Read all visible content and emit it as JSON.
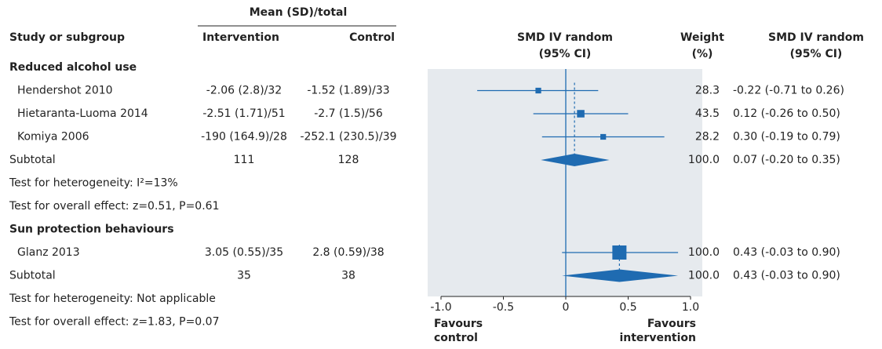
{
  "chart_data": {
    "type": "forest",
    "group_header": "Mean (SD)/total",
    "study_header": "Study or subgroup",
    "intervention_header": "Intervention",
    "control_header": "Control",
    "plot_header": [
      "SMD IV random",
      "(95% CI)"
    ],
    "weight_header": [
      "Weight",
      "(%)"
    ],
    "ci_header": [
      "SMD IV random",
      "(95% CI)"
    ],
    "xlim": [
      -1,
      1
    ],
    "xticks": [
      {
        "value": -1,
        "label": "-1.0"
      },
      {
        "value": -0.5,
        "label": "-0.5"
      },
      0,
      0.5,
      {
        "value": 1,
        "label": "1.0"
      }
    ],
    "favours_left": [
      "Favours",
      "control"
    ],
    "favours_right": [
      "Favours",
      "intervention"
    ],
    "color": "#1f6bb1",
    "subgroups": [
      {
        "name": "Reduced alcohol use",
        "studies": [
          {
            "name": "Hendershot 2010",
            "intervention": "-2.06 (2.8)/32",
            "control": "-1.52 (1.89)/33",
            "est": -0.22,
            "lo": -0.71,
            "hi": 0.26,
            "weight": 28.3,
            "ci_label": "-0.22 (-0.71 to 0.26)"
          },
          {
            "name": "Hietaranta-Luoma 2014",
            "intervention": "-2.51 (1.71)/51",
            "control": "-2.7 (1.5)/56",
            "est": 0.12,
            "lo": -0.26,
            "hi": 0.5,
            "weight": 43.5,
            "ci_label": "0.12 (-0.26 to 0.50)"
          },
          {
            "name": "Komiya 2006",
            "intervention": "-190 (164.9)/28",
            "control": "-252.1 (230.5)/39",
            "est": 0.3,
            "lo": -0.19,
            "hi": 0.79,
            "weight": 28.2,
            "ci_label": "0.30 (-0.19 to 0.79)"
          }
        ],
        "subtotal": {
          "name": "Subtotal",
          "intervention": 111,
          "control": 128,
          "est": 0.07,
          "lo": -0.2,
          "hi": 0.35,
          "weight": {
            "value": 100,
            "label": "100.0"
          },
          "ci_label": "0.07 (-0.20 to 0.35)"
        },
        "heterogeneity": "Test for heterogeneity: I²=13%",
        "overall": "Test for overall effect: z=0.51, P=0.61"
      },
      {
        "name": "Sun protection behaviours",
        "studies": [
          {
            "name": "Glanz 2013",
            "intervention": "3.05 (0.55)/35",
            "control": "2.8 (0.59)/38",
            "est": 0.43,
            "lo": -0.03,
            "hi": 0.9,
            "weight": {
              "value": 100,
              "label": "100.0"
            },
            "ci_label": "0.43 (-0.03 to 0.90)"
          }
        ],
        "subtotal": {
          "name": "Subtotal",
          "intervention": 35,
          "control": 38,
          "est": 0.43,
          "lo": -0.03,
          "hi": 0.9,
          "weight": {
            "value": 100,
            "label": "100.0"
          },
          "ci_label": "0.43 (-0.03 to 0.90)"
        },
        "heterogeneity": "Test for heterogeneity: Not applicable",
        "overall": "Test for overall effect: z=1.83, P=0.07"
      }
    ]
  }
}
